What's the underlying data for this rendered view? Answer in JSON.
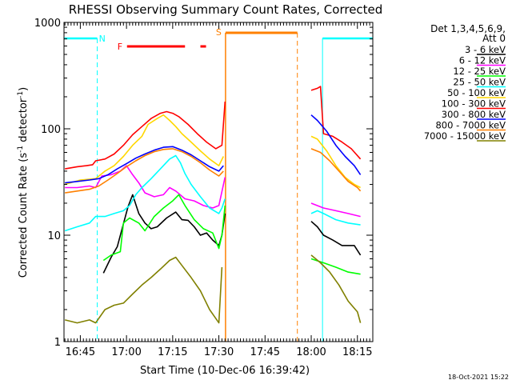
{
  "chart_data": {
    "type": "line",
    "title": "RHESSI Observing Summary Count Rates, Corrected",
    "xlabel": "Start Time (10-Dec-06 16:39:42)",
    "ylabel": "Corrected Count Rate (s⁻¹ detector⁻¹)",
    "ylabel_main": "Corrected Count Rate (s",
    "ylabel_sup1": "-1",
    "ylabel_mid": " detector",
    "ylabel_sup2": "-1",
    "ylabel_end": ")",
    "yscale": "log",
    "ylim": [
      1,
      1000
    ],
    "xlim": [
      "16:39:42",
      "18:20:00"
    ],
    "ytick_labels": [
      "1",
      "10",
      "100",
      "1000"
    ],
    "xtick_labels": [
      "16:45",
      "17:00",
      "17:15",
      "17:30",
      "17:45",
      "18:00",
      "18:15"
    ],
    "legend_placement": "top-right, outside plot",
    "legend_header": [
      "Det 1,3,4,5,6,9,",
      "Att 0"
    ],
    "footer_date": "18-Oct-2021 15:22",
    "flag_labels": {
      "night": "N",
      "flare": "F",
      "saa": "S"
    },
    "flags": {
      "night_color": "#00ffff",
      "night": [
        [
          "16:39:42",
          "16:50:30"
        ],
        [
          "18:03:40",
          "18:20:00"
        ]
      ],
      "flare_color": "#ff0000",
      "flare": [
        [
          "17:00:10",
          "17:19:00"
        ],
        [
          "17:24:00",
          "17:25:50"
        ]
      ],
      "saa_color": "#ff8000",
      "saa": [
        [
          "17:32:10",
          "17:55:30"
        ]
      ]
    },
    "series": [
      {
        "name": "3 - 6 keV",
        "color": "#000000",
        "points": [
          [
            "16:52:30",
            4.4
          ],
          [
            "16:55:00",
            6.2
          ],
          [
            "16:57:00",
            7.8
          ],
          [
            "16:59:00",
            12.8
          ],
          [
            "17:00:30",
            18.5
          ],
          [
            "17:02:00",
            24
          ],
          [
            "17:04:00",
            16
          ],
          [
            "17:06:00",
            13
          ],
          [
            "17:08:00",
            11.5
          ],
          [
            "17:10:00",
            12
          ],
          [
            "17:13:00",
            14.5
          ],
          [
            "17:16:00",
            16.5
          ],
          [
            "17:18:00",
            14
          ],
          [
            "17:20:00",
            13.8
          ],
          [
            "17:22:00",
            12
          ],
          [
            "17:24:00",
            10
          ],
          [
            "17:26:00",
            10.5
          ],
          [
            "17:28:00",
            9
          ],
          [
            "17:30:00",
            8
          ],
          [
            "17:31:00",
            10
          ],
          [
            "17:32:00",
            16
          ],
          [
            "18:00:00",
            13.5
          ],
          [
            "18:02:00",
            12
          ],
          [
            "18:04:00",
            10
          ],
          [
            "18:07:00",
            9
          ],
          [
            "18:10:00",
            8
          ],
          [
            "18:14:00",
            8
          ],
          [
            "18:16:00",
            6.5
          ]
        ]
      },
      {
        "name": "6 - 12 keV",
        "color": "#ff00ff",
        "points": [
          [
            "16:40:00",
            28
          ],
          [
            "16:44:00",
            28
          ],
          [
            "16:48:00",
            29
          ],
          [
            "16:50:00",
            28
          ],
          [
            "16:52:00",
            36
          ],
          [
            "16:55:00",
            37
          ],
          [
            "16:58:00",
            40
          ],
          [
            "17:00:00",
            45
          ],
          [
            "17:02:00",
            37
          ],
          [
            "17:04:00",
            31
          ],
          [
            "17:06:00",
            25
          ],
          [
            "17:09:00",
            23
          ],
          [
            "17:12:00",
            24
          ],
          [
            "17:14:00",
            28
          ],
          [
            "17:16:00",
            26
          ],
          [
            "17:19:00",
            22
          ],
          [
            "17:22:00",
            21
          ],
          [
            "17:25:00",
            19
          ],
          [
            "17:28:00",
            18
          ],
          [
            "17:30:00",
            19
          ],
          [
            "17:32:00",
            35
          ],
          [
            "18:00:00",
            20
          ],
          [
            "18:04:00",
            18
          ],
          [
            "18:08:00",
            17
          ],
          [
            "18:12:00",
            16
          ],
          [
            "18:16:00",
            15
          ]
        ]
      },
      {
        "name": "12 - 25 keV",
        "color": "#00ff00",
        "points": [
          [
            "16:52:30",
            5.8
          ],
          [
            "16:55:00",
            6.5
          ],
          [
            "16:58:00",
            7
          ],
          [
            "16:59:00",
            13
          ],
          [
            "17:01:00",
            14.5
          ],
          [
            "17:04:00",
            13
          ],
          [
            "17:06:00",
            11
          ],
          [
            "17:09:00",
            15
          ],
          [
            "17:12:00",
            18
          ],
          [
            "17:15:00",
            21
          ],
          [
            "17:17:00",
            24
          ],
          [
            "17:19:00",
            19
          ],
          [
            "17:22:00",
            14
          ],
          [
            "17:25:00",
            11.5
          ],
          [
            "17:28:00",
            10.5
          ],
          [
            "17:30:00",
            7.5
          ],
          [
            "17:31:00",
            10
          ],
          [
            "17:32:00",
            19
          ],
          [
            "18:00:00",
            6
          ],
          [
            "18:04:00",
            5.5
          ],
          [
            "18:08:00",
            5
          ],
          [
            "18:12:00",
            4.5
          ],
          [
            "18:16:00",
            4.3
          ]
        ]
      },
      {
        "name": "25 - 50 keV",
        "color": "#00ffff",
        "points": [
          [
            "16:40:00",
            11
          ],
          [
            "16:44:00",
            12
          ],
          [
            "16:48:00",
            13
          ],
          [
            "16:50:00",
            15
          ],
          [
            "16:53:00",
            15
          ],
          [
            "16:56:00",
            16
          ],
          [
            "16:59:00",
            17
          ],
          [
            "17:01:00",
            19
          ],
          [
            "17:03:00",
            24
          ],
          [
            "17:05:00",
            28
          ],
          [
            "17:08:00",
            34
          ],
          [
            "17:11:00",
            42
          ],
          [
            "17:14:00",
            52
          ],
          [
            "17:16:00",
            56
          ],
          [
            "17:17:30",
            48
          ],
          [
            "17:19:00",
            38
          ],
          [
            "17:21:00",
            30
          ],
          [
            "17:24:00",
            23
          ],
          [
            "17:27:00",
            18
          ],
          [
            "17:30:00",
            16
          ],
          [
            "17:31:00",
            18
          ],
          [
            "17:32:00",
            22
          ],
          [
            "18:00:00",
            16
          ],
          [
            "18:02:00",
            17
          ],
          [
            "18:04:00",
            16
          ],
          [
            "18:08:00",
            14
          ],
          [
            "18:12:00",
            13
          ],
          [
            "18:16:00",
            12.5
          ]
        ]
      },
      {
        "name": "50 - 100 keV",
        "color": "#ffd700",
        "points": [
          [
            "16:40:00",
            30
          ],
          [
            "16:45:00",
            33
          ],
          [
            "16:50:00",
            34
          ],
          [
            "16:53:00",
            40
          ],
          [
            "16:56:00",
            45
          ],
          [
            "16:59:00",
            55
          ],
          [
            "17:02:00",
            70
          ],
          [
            "17:05:00",
            85
          ],
          [
            "17:07:00",
            110
          ],
          [
            "17:10:00",
            125
          ],
          [
            "17:12:00",
            135
          ],
          [
            "17:14:00",
            120
          ],
          [
            "17:16:00",
            105
          ],
          [
            "17:18:00",
            90
          ],
          [
            "17:21:00",
            75
          ],
          [
            "17:24:00",
            62
          ],
          [
            "17:27:00",
            52
          ],
          [
            "17:30:00",
            45
          ],
          [
            "17:31:30",
            55
          ],
          [
            "18:00:00",
            85
          ],
          [
            "18:02:00",
            80
          ],
          [
            "18:05:00",
            62
          ],
          [
            "18:08:00",
            45
          ],
          [
            "18:11:00",
            35
          ],
          [
            "18:14:00",
            30
          ],
          [
            "18:16:00",
            28
          ]
        ]
      },
      {
        "name": "100 - 300 keV",
        "color": "#ff0000",
        "points": [
          [
            "16:40:00",
            42
          ],
          [
            "16:44:00",
            44
          ],
          [
            "16:47:00",
            45
          ],
          [
            "16:49:00",
            46
          ],
          [
            "16:50:00",
            50
          ],
          [
            "16:53:00",
            52
          ],
          [
            "16:56:00",
            58
          ],
          [
            "16:59:00",
            70
          ],
          [
            "17:02:00",
            88
          ],
          [
            "17:05:00",
            105
          ],
          [
            "17:08:00",
            125
          ],
          [
            "17:11:00",
            140
          ],
          [
            "17:13:00",
            145
          ],
          [
            "17:15:00",
            140
          ],
          [
            "17:17:00",
            130
          ],
          [
            "17:20:00",
            110
          ],
          [
            "17:23:00",
            90
          ],
          [
            "17:26:00",
            75
          ],
          [
            "17:29:00",
            65
          ],
          [
            "17:31:00",
            70
          ],
          [
            "17:32:00",
            180
          ],
          [
            "18:00:00",
            230
          ],
          [
            "18:02:00",
            240
          ],
          [
            "18:03:00",
            250
          ],
          [
            "18:04:00",
            90
          ],
          [
            "18:07:00",
            85
          ],
          [
            "18:10:00",
            75
          ],
          [
            "18:13:00",
            65
          ],
          [
            "18:16:00",
            52
          ]
        ]
      },
      {
        "name": "300 - 800 keV",
        "color": "#0000ff",
        "points": [
          [
            "16:40:00",
            31
          ],
          [
            "16:44:00",
            32
          ],
          [
            "16:48:00",
            33
          ],
          [
            "16:51:00",
            34
          ],
          [
            "16:54:00",
            37
          ],
          [
            "16:57:00",
            42
          ],
          [
            "17:00:00",
            47
          ],
          [
            "17:03:00",
            53
          ],
          [
            "17:06:00",
            58
          ],
          [
            "17:09:00",
            63
          ],
          [
            "17:12:00",
            67
          ],
          [
            "17:15:00",
            68
          ],
          [
            "17:18:00",
            63
          ],
          [
            "17:21:00",
            57
          ],
          [
            "17:24:00",
            50
          ],
          [
            "17:27:00",
            44
          ],
          [
            "17:30:00",
            40
          ],
          [
            "17:31:30",
            45
          ],
          [
            "18:00:00",
            135
          ],
          [
            "18:02:00",
            120
          ],
          [
            "18:05:00",
            95
          ],
          [
            "18:08:00",
            70
          ],
          [
            "18:11:00",
            55
          ],
          [
            "18:14:00",
            45
          ],
          [
            "18:16:00",
            37
          ]
        ]
      },
      {
        "name": "800 - 7000 keV",
        "color": "#ff8000",
        "points": [
          [
            "16:40:00",
            25
          ],
          [
            "16:44:00",
            26
          ],
          [
            "16:48:00",
            27
          ],
          [
            "16:51:00",
            29
          ],
          [
            "16:54:00",
            33
          ],
          [
            "16:57:00",
            38
          ],
          [
            "17:00:00",
            44
          ],
          [
            "17:03:00",
            50
          ],
          [
            "17:06:00",
            56
          ],
          [
            "17:09:00",
            61
          ],
          [
            "17:12:00",
            64
          ],
          [
            "17:15:00",
            65
          ],
          [
            "17:18:00",
            61
          ],
          [
            "17:21:00",
            55
          ],
          [
            "17:24:00",
            48
          ],
          [
            "17:27:00",
            41
          ],
          [
            "17:30:00",
            36
          ],
          [
            "17:31:30",
            40
          ],
          [
            "18:00:00",
            65
          ],
          [
            "18:03:00",
            60
          ],
          [
            "18:06:00",
            50
          ],
          [
            "18:09:00",
            40
          ],
          [
            "18:12:00",
            32
          ],
          [
            "18:15:00",
            28
          ],
          [
            "18:16:00",
            26
          ]
        ]
      },
      {
        "name": "7000 - 15000 keV",
        "color": "#808000",
        "points": [
          [
            "16:40:00",
            1.6
          ],
          [
            "16:44:00",
            1.5
          ],
          [
            "16:48:00",
            1.6
          ],
          [
            "16:50:00",
            1.5
          ],
          [
            "16:53:00",
            2
          ],
          [
            "16:56:00",
            2.2
          ],
          [
            "16:59:00",
            2.3
          ],
          [
            "17:02:00",
            2.8
          ],
          [
            "17:05:00",
            3.4
          ],
          [
            "17:08:00",
            4
          ],
          [
            "17:11:00",
            4.8
          ],
          [
            "17:14:00",
            5.8
          ],
          [
            "17:16:00",
            6.2
          ],
          [
            "17:18:00",
            5.2
          ],
          [
            "17:21:00",
            4
          ],
          [
            "17:24:00",
            3
          ],
          [
            "17:27:00",
            2
          ],
          [
            "17:30:00",
            1.5
          ],
          [
            "17:31:00",
            5
          ],
          [
            "18:00:00",
            6.5
          ],
          [
            "18:03:00",
            5.5
          ],
          [
            "18:06:00",
            4.5
          ],
          [
            "18:09:00",
            3.4
          ],
          [
            "18:12:00",
            2.4
          ],
          [
            "18:15:00",
            1.9
          ],
          [
            "18:16:00",
            1.5
          ]
        ]
      }
    ]
  }
}
